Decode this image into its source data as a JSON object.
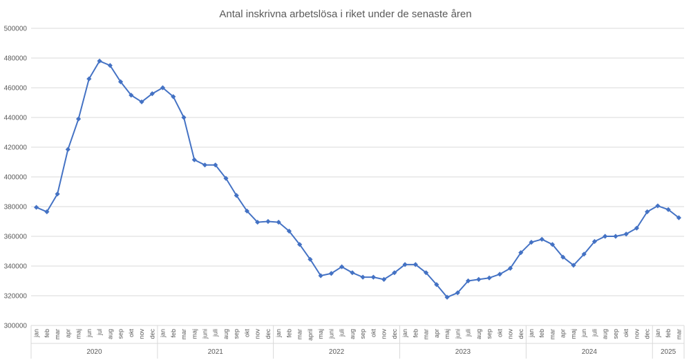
{
  "chart_data": {
    "type": "line",
    "title": "Antal inskrivna arbetslösa i riket under de senaste åren",
    "xlabel": "",
    "ylabel": "",
    "ylim": [
      300000,
      500000
    ],
    "yticks": [
      300000,
      320000,
      340000,
      360000,
      380000,
      400000,
      420000,
      440000,
      460000,
      480000,
      500000
    ],
    "ytick_labels": [
      "300000",
      "320000",
      "340000",
      "360000",
      "380000",
      "400000",
      "420000",
      "440000",
      "460000",
      "480000",
      "500000"
    ],
    "grid": true,
    "legend": "none",
    "color": "#4472c4",
    "years": [
      {
        "label": "2020",
        "months": 12
      },
      {
        "label": "2021",
        "months": 11
      },
      {
        "label": "2022",
        "months": 12
      },
      {
        "label": "2023",
        "months": 12
      },
      {
        "label": "2024",
        "months": 12
      },
      {
        "label": "2025",
        "months": 3
      }
    ],
    "categories": [
      "jan",
      "feb",
      "mar",
      "apr",
      "maj",
      "jun",
      "jul",
      "aug",
      "sep",
      "okt",
      "nov",
      "dec",
      "jan",
      "feb",
      "mar",
      "maj",
      "juni",
      "juli",
      "aug",
      "sep",
      "okt",
      "nov",
      "dec",
      "jan",
      "feb",
      "mar",
      "april",
      "maj",
      "juni",
      "juli",
      "aug",
      "sep",
      "okt",
      "nov",
      "dec",
      "jan",
      "feb",
      "mar",
      "apr",
      "maj",
      "juni",
      "juli",
      "aug",
      "sep",
      "okt",
      "nov",
      "dec",
      "jan",
      "feb",
      "mar",
      "apr",
      "maj",
      "jun",
      "juli",
      "aug",
      "sep",
      "okt",
      "nov",
      "dec",
      "jan",
      "feb",
      "mar"
    ],
    "series": [
      {
        "name": "Antal inskrivna arbetslösa",
        "values": [
          379500,
          376500,
          388500,
          418500,
          439000,
          466000,
          478000,
          475000,
          464000,
          455000,
          450500,
          456000,
          460000,
          454000,
          440000,
          411500,
          408000,
          408000,
          399000,
          387500,
          377000,
          369500,
          370000,
          369500,
          363500,
          354500,
          344500,
          333500,
          335000,
          339500,
          335500,
          332500,
          332500,
          331000,
          335500,
          341000,
          341000,
          335500,
          327500,
          319000,
          322000,
          330000,
          331000,
          332000,
          334500,
          338500,
          349000,
          356000,
          358000,
          354500,
          346000,
          340500,
          348000,
          356500,
          360000,
          360000,
          361500,
          365500,
          376500,
          380500,
          378000,
          372500
        ]
      }
    ]
  }
}
